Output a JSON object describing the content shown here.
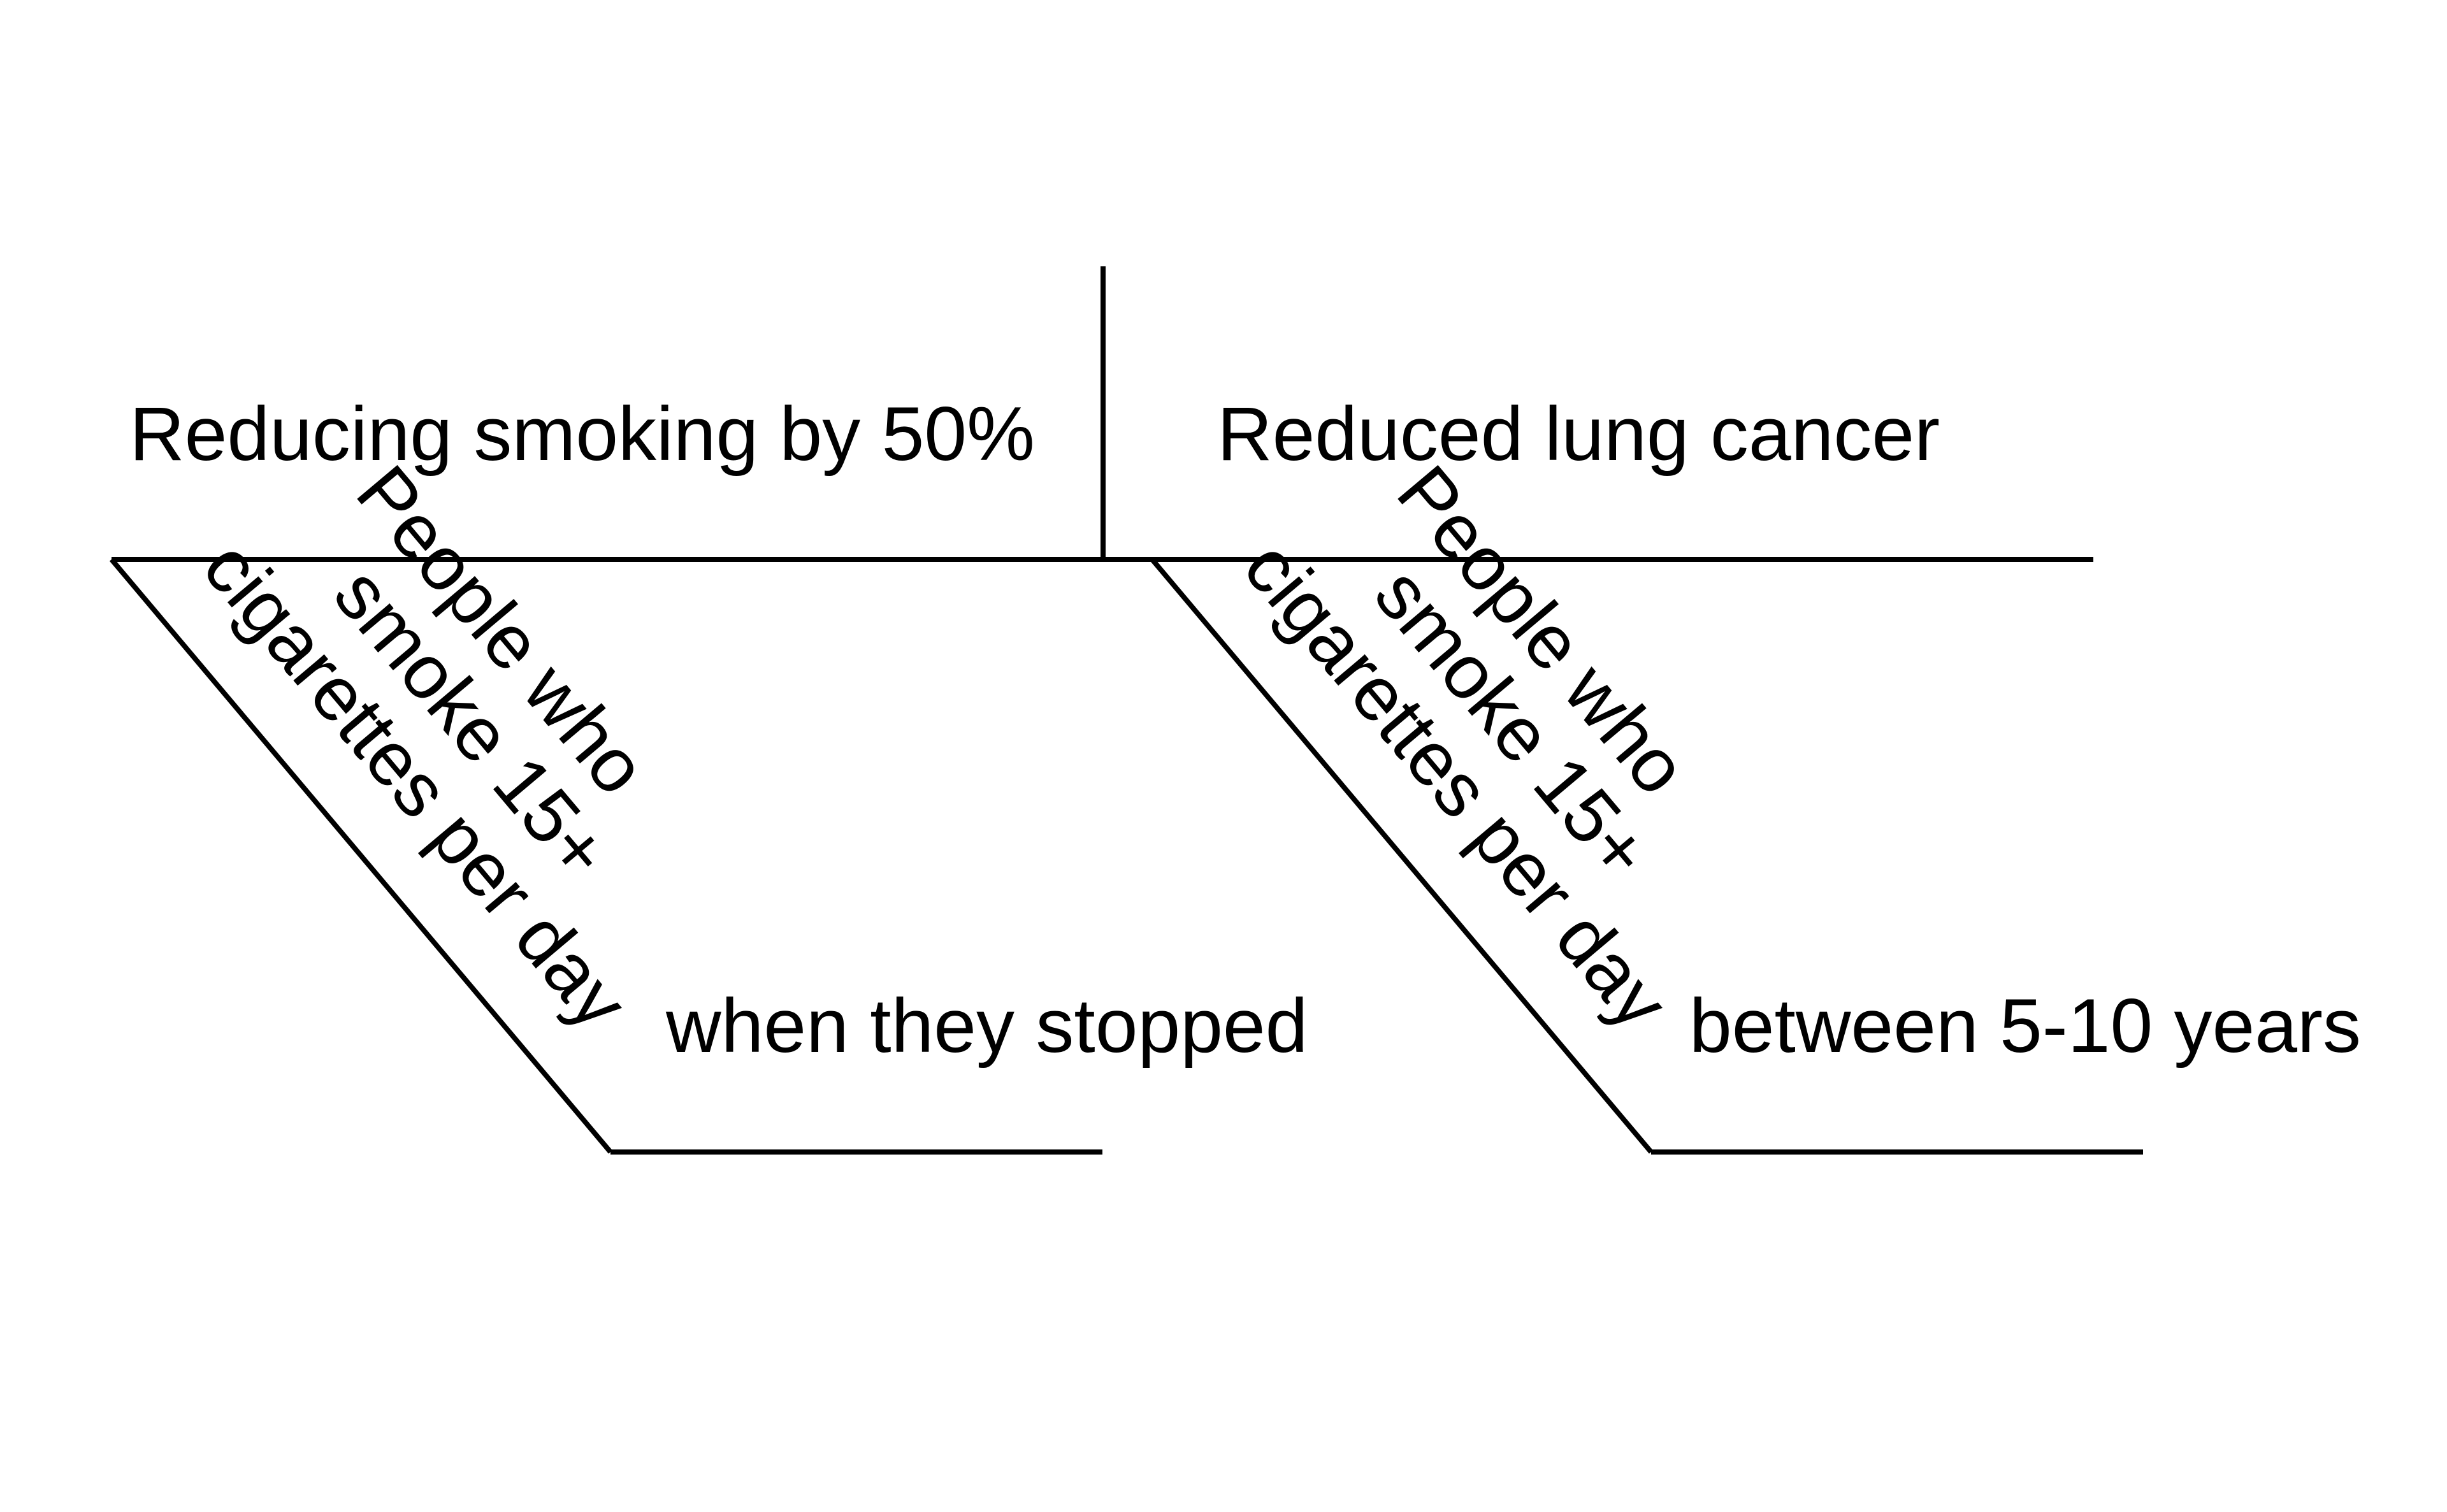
{
  "diagram": {
    "subject": "Reducing smoking by 50%",
    "predicate": "Reduced lung cancer",
    "left_modifier": {
      "lines": [
        "People who",
        "smoke 15+",
        "cigarettes per day"
      ],
      "baseline_text": "when they stopped"
    },
    "right_modifier": {
      "lines": [
        "People who",
        "smoke 15+",
        "cigarettes per day"
      ],
      "baseline_text": "between 5-10 years"
    }
  }
}
